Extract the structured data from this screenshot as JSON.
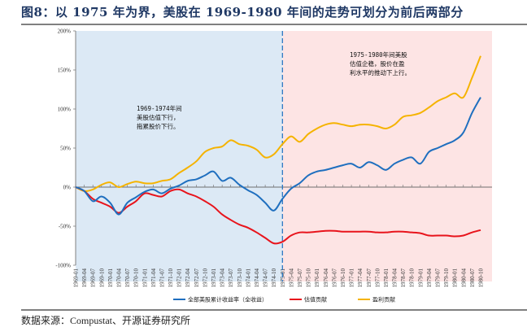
{
  "header": {
    "title": "图8：以 1975 年为界，美股在 1969-1980 年间的走势可划分为前后两部分"
  },
  "footer": {
    "source": "数据来源：Compustat、开源证券研究所"
  },
  "chart_data": {
    "type": "line",
    "title": "图8：以 1975 年为界，美股在 1969-1980 年间的走势可划分为前后两部分",
    "xlabel": "",
    "ylabel": "",
    "ylim": [
      -100,
      200
    ],
    "y_ticks": [
      "200%",
      "150%",
      "100%",
      "50%",
      "0%",
      "-50%",
      "-100%"
    ],
    "y_tick_values": [
      200,
      150,
      100,
      50,
      0,
      -50,
      -100
    ],
    "grid": false,
    "legend_position": "bottom",
    "divider": {
      "at": "1975-01",
      "style": "dashed"
    },
    "regions": [
      {
        "name": "1969-1974",
        "color": "#dce9f5"
      },
      {
        "name": "1975-1980",
        "color": "#fde4e4"
      }
    ],
    "annotations": [
      {
        "region": "1969-1974",
        "lines": [
          "1969-1974年间",
          "美股估值下行，",
          "拖累股价下行。"
        ]
      },
      {
        "region": "1975-1980",
        "lines": [
          "1975-1980年间美股",
          "估值企稳，股价在盈",
          "利水平的推动下上行。"
        ]
      }
    ],
    "x": [
      "1969-01",
      "1969-04",
      "1969-07",
      "1969-10",
      "1970-01",
      "1970-04",
      "1970-07",
      "1970-10",
      "1971-01",
      "1971-04",
      "1971-07",
      "1971-10",
      "1972-01",
      "1972-04",
      "1972-07",
      "1972-10",
      "1973-01",
      "1973-04",
      "1973-07",
      "1973-10",
      "1974-01",
      "1974-04",
      "1974-07",
      "1974-10",
      "1975-01",
      "1975-04",
      "1975-07",
      "1975-10",
      "1976-01",
      "1976-04",
      "1976-07",
      "1976-10",
      "1977-01",
      "1977-04",
      "1977-07",
      "1977-10",
      "1978-01",
      "1978-04",
      "1978-07",
      "1978-10",
      "1979-01",
      "1979-04",
      "1979-07",
      "1979-10",
      "1980-01",
      "1980-04",
      "1980-07",
      "1980-10"
    ],
    "series": [
      {
        "name": "全部美股累计收益率（全收益）",
        "color": "#1f6fbf",
        "values": [
          0,
          -5,
          -18,
          -12,
          -20,
          -35,
          -20,
          -13,
          -6,
          -3,
          -8,
          -2,
          2,
          8,
          10,
          15,
          20,
          8,
          12,
          3,
          -4,
          -10,
          -20,
          -30,
          -15,
          -2,
          5,
          15,
          20,
          22,
          25,
          28,
          30,
          25,
          32,
          28,
          22,
          30,
          35,
          38,
          30,
          45,
          50,
          55,
          60,
          70,
          95,
          115
        ]
      },
      {
        "name": "估值贡献",
        "color": "#e8141c",
        "values": [
          0,
          -5,
          -15,
          -20,
          -25,
          -33,
          -25,
          -18,
          -8,
          -10,
          -12,
          -5,
          -3,
          -8,
          -12,
          -18,
          -25,
          -35,
          -42,
          -48,
          -52,
          -58,
          -65,
          -72,
          -70,
          -62,
          -58,
          -58,
          -57,
          -56,
          -56,
          -57,
          -57,
          -57,
          -57,
          -58,
          -58,
          -57,
          -57,
          -58,
          -59,
          -62,
          -62,
          -62,
          -63,
          -62,
          -58,
          -55
        ]
      },
      {
        "name": "盈利贡献",
        "color": "#f5b300",
        "values": [
          0,
          -5,
          -3,
          3,
          6,
          0,
          4,
          7,
          5,
          5,
          8,
          10,
          18,
          25,
          33,
          45,
          50,
          52,
          60,
          55,
          53,
          48,
          38,
          42,
          55,
          65,
          58,
          68,
          75,
          80,
          82,
          80,
          78,
          80,
          80,
          78,
          75,
          80,
          90,
          92,
          95,
          102,
          110,
          115,
          120,
          115,
          140,
          168
        ]
      }
    ]
  }
}
